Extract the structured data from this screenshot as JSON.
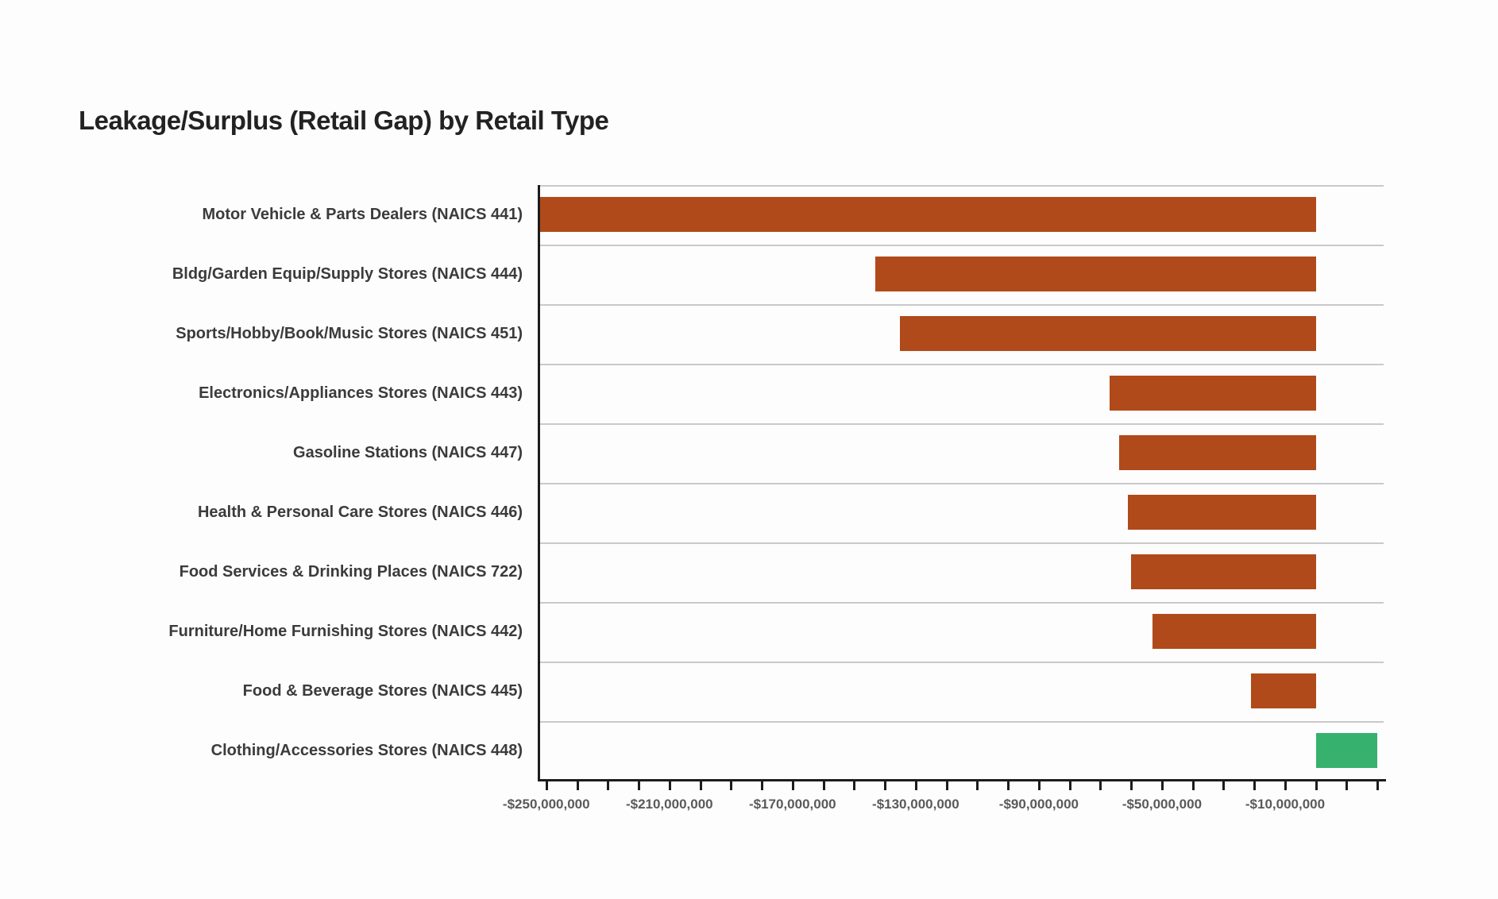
{
  "title": "Leakage/Surplus (Retail Gap) by Retail Type",
  "colors": {
    "leakage_bar": "#b04a1a",
    "surplus_bar": "#36b16e",
    "gridline": "#c9c9c9",
    "axis": "#1c1c1c",
    "title_text": "#222222",
    "category_text": "#3b3b3b",
    "tick_text": "#5a5a5a",
    "background": "#fdfdfd"
  },
  "chart_data": {
    "type": "bar",
    "orientation": "horizontal",
    "title": "Leakage/Surplus (Retail Gap) by Retail Type",
    "categories": [
      "Motor Vehicle & Parts Dealers (NAICS 441)",
      "Bldg/Garden Equip/Supply Stores (NAICS 444)",
      "Sports/Hobby/Book/Music Stores (NAICS 451)",
      "Electronics/Appliances Stores (NAICS 443)",
      "Gasoline Stations (NAICS 447)",
      "Health & Personal Care Stores (NAICS 446)",
      "Food Services & Drinking Places (NAICS 722)",
      "Furniture/Home Furnishing Stores (NAICS 442)",
      "Food & Beverage Stores (NAICS 445)",
      "Clothing/Accessories Stores (NAICS 448)"
    ],
    "values": [
      -252000000,
      -143000000,
      -135000000,
      -67000000,
      -64000000,
      -61000000,
      -60000000,
      -53000000,
      -21000000,
      20000000
    ],
    "value_unit": "USD",
    "xlim": [
      -252000000,
      22000000
    ],
    "x_minor_tick_step": 10000000,
    "x_tick_min": -250000000,
    "x_tick_max": 20000000,
    "x_tick_labels": [
      {
        "value": -250000000,
        "label": "-$250,000,000"
      },
      {
        "value": -210000000,
        "label": "-$210,000,000"
      },
      {
        "value": -170000000,
        "label": "-$170,000,000"
      },
      {
        "value": -130000000,
        "label": "-$130,000,000"
      },
      {
        "value": -90000000,
        "label": "-$90,000,000"
      },
      {
        "value": -50000000,
        "label": "-$50,000,000"
      },
      {
        "value": -10000000,
        "label": "-$10,000,000"
      }
    ],
    "xlabel": "",
    "ylabel": "",
    "grid": "horizontal row separator lines only",
    "legend": "none",
    "bar_color_negative": "#b04a1a",
    "bar_color_positive": "#36b16e"
  }
}
